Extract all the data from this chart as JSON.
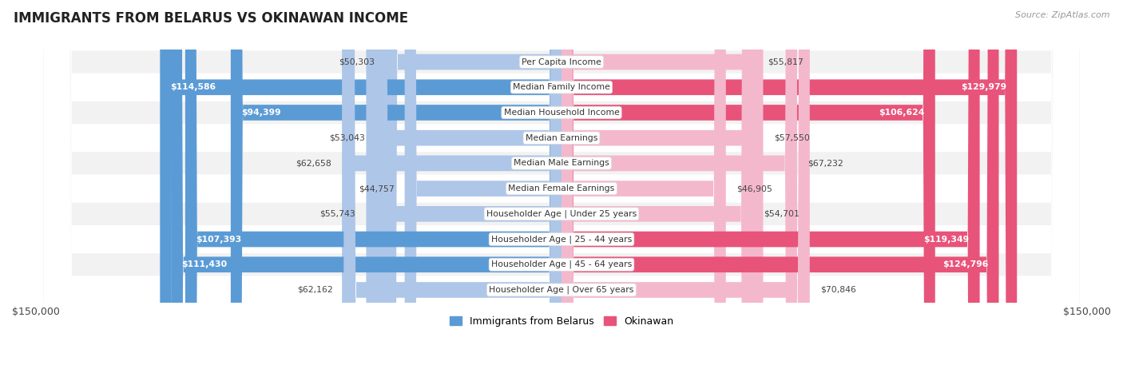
{
  "title": "IMMIGRANTS FROM BELARUS VS OKINAWAN INCOME",
  "source": "Source: ZipAtlas.com",
  "categories": [
    "Per Capita Income",
    "Median Family Income",
    "Median Household Income",
    "Median Earnings",
    "Median Male Earnings",
    "Median Female Earnings",
    "Householder Age | Under 25 years",
    "Householder Age | 25 - 44 years",
    "Householder Age | 45 - 64 years",
    "Householder Age | Over 65 years"
  ],
  "belarus_values": [
    50303,
    114586,
    94399,
    53043,
    62658,
    44757,
    55743,
    107393,
    111430,
    62162
  ],
  "okinawan_values": [
    55817,
    129979,
    106624,
    57550,
    67232,
    46905,
    54701,
    119349,
    124796,
    70846
  ],
  "belarus_labels": [
    "$50,303",
    "$114,586",
    "$94,399",
    "$53,043",
    "$62,658",
    "$44,757",
    "$55,743",
    "$107,393",
    "$111,430",
    "$62,162"
  ],
  "okinawan_labels": [
    "$55,817",
    "$129,979",
    "$106,624",
    "$57,550",
    "$67,232",
    "$46,905",
    "$54,701",
    "$119,349",
    "$124,796",
    "$70,846"
  ],
  "belarus_color_light": "#aec6e8",
  "belarus_color_dark": "#5b9bd5",
  "okinawan_color_light": "#f4b8cc",
  "okinawan_color_dark": "#e8537a",
  "threshold": 80000,
  "max_value": 150000,
  "legend_belarus": "Immigrants from Belarus",
  "legend_okinawan": "Okinawan",
  "row_colors": [
    "#f2f2f2",
    "#ffffff",
    "#f2f2f2",
    "#ffffff",
    "#f2f2f2",
    "#ffffff",
    "#f2f2f2",
    "#ffffff",
    "#f2f2f2",
    "#ffffff"
  ]
}
